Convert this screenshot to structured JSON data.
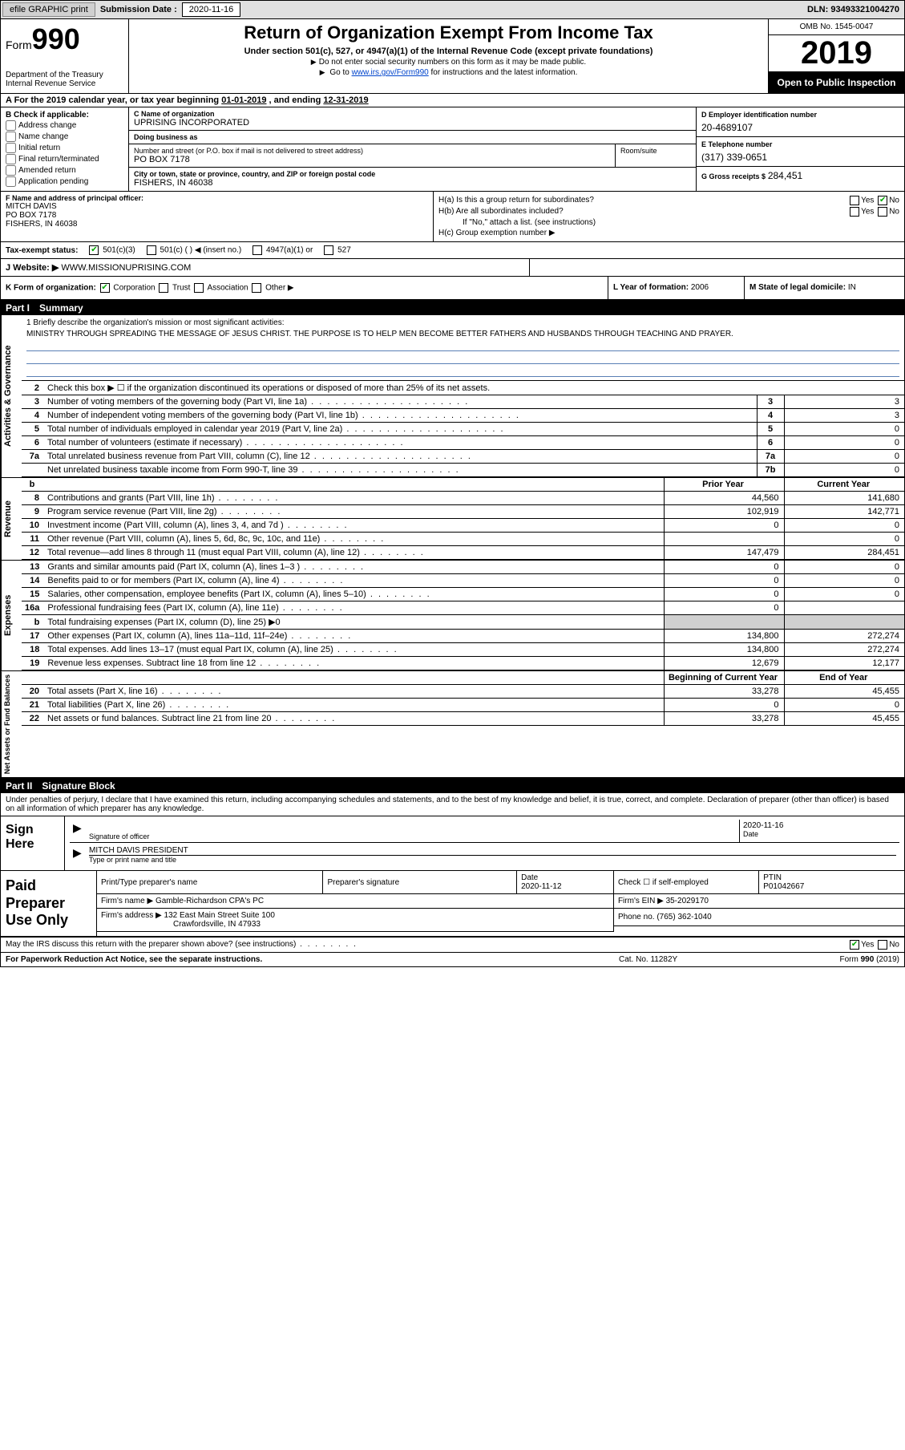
{
  "topbar": {
    "efile_btn": "efile GRAPHIC print",
    "sub_date_lbl": "Submission Date :",
    "sub_date_val": "2020-11-16",
    "dln_lbl": "DLN:",
    "dln_val": "93493321004270"
  },
  "header": {
    "form_prefix": "Form",
    "form_num": "990",
    "dept": "Department of the Treasury\nInternal Revenue Service",
    "title": "Return of Organization Exempt From Income Tax",
    "subtitle": "Under section 501(c), 527, or 4947(a)(1) of the Internal Revenue Code (except private foundations)",
    "note1": "Do not enter social security numbers on this form as it may be made public.",
    "note2_pre": "Go to ",
    "note2_link": "www.irs.gov/Form990",
    "note2_post": " for instructions and the latest information.",
    "omb": "OMB No. 1545-0047",
    "year": "2019",
    "inspection": "Open to Public Inspection"
  },
  "period": {
    "text_a": "A For the 2019 calendar year, or tax year beginning ",
    "begin": "01-01-2019",
    "mid": " , and ending ",
    "end": "12-31-2019"
  },
  "boxB": {
    "header": "B Check if applicable:",
    "opts": [
      "Address change",
      "Name change",
      "Initial return",
      "Final return/terminated",
      "Amended return",
      "Application pending"
    ]
  },
  "boxC": {
    "name_lbl": "C Name of organization",
    "name_val": "UPRISING INCORPORATED",
    "dba_lbl": "Doing business as",
    "dba_val": "",
    "addr_lbl": "Number and street (or P.O. box if mail is not delivered to street address)",
    "addr_val": "PO BOX 7178",
    "suite_lbl": "Room/suite",
    "city_lbl": "City or town, state or province, country, and ZIP or foreign postal code",
    "city_val": "FISHERS, IN  46038"
  },
  "boxD": {
    "lbl": "D Employer identification number",
    "val": "20-4689107"
  },
  "boxE": {
    "lbl": "E Telephone number",
    "val": "(317) 339-0651"
  },
  "boxG": {
    "lbl": "G Gross receipts $",
    "val": "284,451"
  },
  "boxF": {
    "lbl": "F Name and address of principal officer:",
    "val": "MITCH DAVIS\nPO BOX 7178\nFISHERS, IN  46038"
  },
  "boxH": {
    "ha_lbl": "H(a)  Is this a group return for subordinates?",
    "hb_lbl": "H(b)  Are all subordinates included?",
    "hb_note": "If \"No,\" attach a list. (see instructions)",
    "hc_lbl": "H(c)  Group exemption number ▶",
    "yes": "Yes",
    "no": "No"
  },
  "boxI": {
    "lbl": "Tax-exempt status:",
    "o1": "501(c)(3)",
    "o2": "501(c) (   ) ◀ (insert no.)",
    "o3": "4947(a)(1) or",
    "o4": "527"
  },
  "boxJ": {
    "lbl": "J   Website: ▶",
    "val": "WWW.MISSIONUPRISING.COM"
  },
  "boxK": {
    "lbl": "K Form of organization:",
    "o1": "Corporation",
    "o2": "Trust",
    "o3": "Association",
    "o4": "Other ▶"
  },
  "boxL": {
    "lbl": "L Year of formation:",
    "val": "2006"
  },
  "boxM": {
    "lbl": "M State of legal domicile:",
    "val": "IN"
  },
  "part1": {
    "num": "Part I",
    "title": "Summary"
  },
  "mission": {
    "q": "1  Briefly describe the organization's mission or most significant activities:",
    "a": "MINISTRY THROUGH SPREADING THE MESSAGE OF JESUS CHRIST. THE PURPOSE IS TO HELP MEN BECOME BETTER FATHERS AND HUSBANDS THROUGH TEACHING AND PRAYER."
  },
  "vtabs": {
    "gov": "Activities & Governance",
    "rev": "Revenue",
    "exp": "Expenses",
    "net": "Net Assets or Fund Balances"
  },
  "gov_lines": [
    {
      "n": "2",
      "d": "Check this box ▶ ☐  if the organization discontinued its operations or disposed of more than 25% of its net assets."
    },
    {
      "n": "3",
      "d": "Number of voting members of the governing body (Part VI, line 1a)",
      "box": "3",
      "v": "3"
    },
    {
      "n": "4",
      "d": "Number of independent voting members of the governing body (Part VI, line 1b)",
      "box": "4",
      "v": "3"
    },
    {
      "n": "5",
      "d": "Total number of individuals employed in calendar year 2019 (Part V, line 2a)",
      "box": "5",
      "v": "0"
    },
    {
      "n": "6",
      "d": "Total number of volunteers (estimate if necessary)",
      "box": "6",
      "v": "0"
    },
    {
      "n": "7a",
      "d": "Total unrelated business revenue from Part VIII, column (C), line 12",
      "box": "7a",
      "v": "0"
    },
    {
      "n": "",
      "d": "Net unrelated business taxable income from Form 990-T, line 39",
      "box": "7b",
      "v": "0"
    }
  ],
  "cols": {
    "b": "b",
    "prior": "Prior Year",
    "current": "Current Year",
    "boy": "Beginning of Current Year",
    "eoy": "End of Year"
  },
  "rev_lines": [
    {
      "n": "8",
      "d": "Contributions and grants (Part VIII, line 1h)",
      "p": "44,560",
      "c": "141,680"
    },
    {
      "n": "9",
      "d": "Program service revenue (Part VIII, line 2g)",
      "p": "102,919",
      "c": "142,771"
    },
    {
      "n": "10",
      "d": "Investment income (Part VIII, column (A), lines 3, 4, and 7d )",
      "p": "0",
      "c": "0"
    },
    {
      "n": "11",
      "d": "Other revenue (Part VIII, column (A), lines 5, 6d, 8c, 9c, 10c, and 11e)",
      "p": "",
      "c": "0"
    },
    {
      "n": "12",
      "d": "Total revenue—add lines 8 through 11 (must equal Part VIII, column (A), line 12)",
      "p": "147,479",
      "c": "284,451"
    }
  ],
  "exp_lines": [
    {
      "n": "13",
      "d": "Grants and similar amounts paid (Part IX, column (A), lines 1–3 )",
      "p": "0",
      "c": "0"
    },
    {
      "n": "14",
      "d": "Benefits paid to or for members (Part IX, column (A), line 4)",
      "p": "0",
      "c": "0"
    },
    {
      "n": "15",
      "d": "Salaries, other compensation, employee benefits (Part IX, column (A), lines 5–10)",
      "p": "0",
      "c": "0"
    },
    {
      "n": "16a",
      "d": "Professional fundraising fees (Part IX, column (A), line 11e)",
      "p": "0",
      "c": ""
    },
    {
      "n": "b",
      "d": "Total fundraising expenses (Part IX, column (D), line 25) ▶0",
      "shade": true
    },
    {
      "n": "17",
      "d": "Other expenses (Part IX, column (A), lines 11a–11d, 11f–24e)",
      "p": "134,800",
      "c": "272,274"
    },
    {
      "n": "18",
      "d": "Total expenses. Add lines 13–17 (must equal Part IX, column (A), line 25)",
      "p": "134,800",
      "c": "272,274"
    },
    {
      "n": "19",
      "d": "Revenue less expenses. Subtract line 18 from line 12",
      "p": "12,679",
      "c": "12,177"
    }
  ],
  "net_lines": [
    {
      "n": "20",
      "d": "Total assets (Part X, line 16)",
      "p": "33,278",
      "c": "45,455"
    },
    {
      "n": "21",
      "d": "Total liabilities (Part X, line 26)",
      "p": "0",
      "c": "0"
    },
    {
      "n": "22",
      "d": "Net assets or fund balances. Subtract line 21 from line 20",
      "p": "33,278",
      "c": "45,455"
    }
  ],
  "part2": {
    "num": "Part II",
    "title": "Signature Block"
  },
  "penalties": "Under penalties of perjury, I declare that I have examined this return, including accompanying schedules and statements, and to the best of my knowledge and belief, it is true, correct, and complete. Declaration of preparer (other than officer) is based on all information of which preparer has any knowledge.",
  "sign": {
    "here": "Sign Here",
    "sig_lbl": "Signature of officer",
    "date_lbl": "Date",
    "date_val": "2020-11-16",
    "name_val": "MITCH DAVIS  PRESIDENT",
    "name_lbl": "Type or print name and title"
  },
  "prep": {
    "title": "Paid Preparer Use Only",
    "pname_lbl": "Print/Type preparer's name",
    "psig_lbl": "Preparer's signature",
    "pdate_lbl": "Date",
    "pdate_val": "2020-11-12",
    "pself_lbl": "Check ☐ if self-employed",
    "ptin_lbl": "PTIN",
    "ptin_val": "P01042667",
    "firm_lbl": "Firm's name      ▶",
    "firm_val": "Gamble-Richardson CPA's PC",
    "fein_lbl": "Firm's EIN ▶",
    "fein_val": "35-2029170",
    "faddr_lbl": "Firm's address ▶",
    "faddr_val1": "132 East Main Street Suite 100",
    "faddr_val2": "Crawfordsville, IN  47933",
    "fphone_lbl": "Phone no.",
    "fphone_val": "(765) 362-1040"
  },
  "discuss": {
    "q": "May the IRS discuss this return with the preparer shown above? (see instructions)",
    "yes": "Yes",
    "no": "No"
  },
  "footer": {
    "pra": "For Paperwork Reduction Act Notice, see the separate instructions.",
    "cat": "Cat. No. 11282Y",
    "form": "Form 990 (2019)"
  }
}
